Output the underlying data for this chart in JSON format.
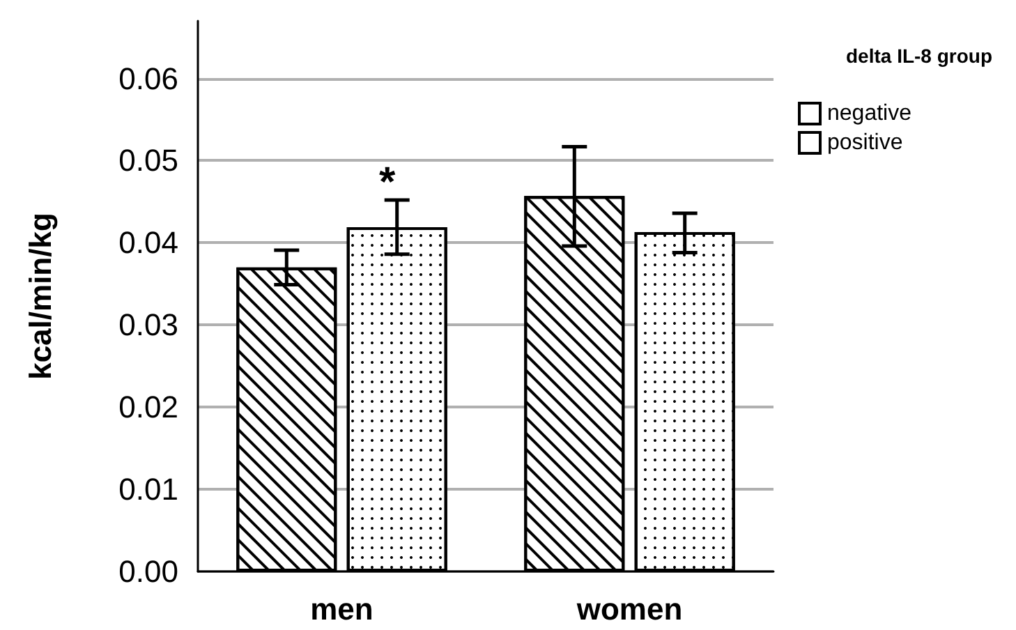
{
  "chart_data": {
    "type": "bar",
    "ylabel": "kcal/min/kg",
    "legend_title": "delta IL-8 group",
    "categories": [
      "men",
      "women"
    ],
    "series": [
      {
        "name": "negative",
        "color": "#ffffff",
        "values": [
          0.037,
          0.0457
        ],
        "errors": [
          [
            0.0349,
            0.0391
          ],
          [
            0.0396,
            0.0517
          ]
        ]
      },
      {
        "name": "positive",
        "color": "#ffffff",
        "values": [
          0.0419,
          0.0413
        ],
        "errors": [
          [
            0.0386,
            0.0452
          ],
          [
            0.0388,
            0.0436
          ]
        ]
      }
    ],
    "annotations": [
      "*"
    ],
    "ylim": [
      0,
      0.067
    ],
    "yticks": [
      {
        "value": 0,
        "label": "0.00"
      },
      {
        "value": 0.01,
        "label": "0.01"
      },
      {
        "value": 0.02,
        "label": "0.02"
      },
      {
        "value": 0.03,
        "label": "0.03"
      },
      {
        "value": 0.04,
        "label": "0.04"
      },
      {
        "value": 0.05,
        "label": "0.05"
      },
      {
        "value": 0.06,
        "label": "0.06"
      }
    ],
    "grid": "y",
    "legend": "top right"
  }
}
